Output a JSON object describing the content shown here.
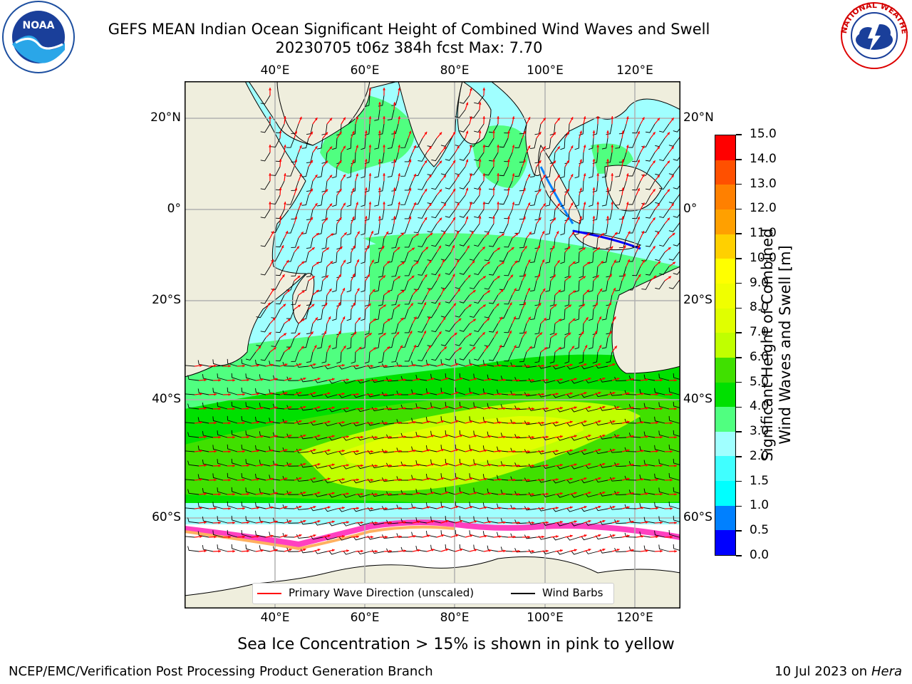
{
  "header": {
    "title_line1": "GEFS MEAN Indian Ocean Significant Height of Combined Wind Waves and Swell",
    "title_line2": "20230705 t06z 384h fcst   Max: 7.70"
  },
  "logos": {
    "left": {
      "icon": "noaa-logo-icon",
      "text": "NOAA"
    },
    "right": {
      "icon": "nws-logo-icon",
      "text": "NATIONAL WEATHER SERVICE"
    }
  },
  "map": {
    "lon_ticks": [
      "40°E",
      "60°E",
      "80°E",
      "100°E",
      "120°E"
    ],
    "lat_ticks": [
      "20°N",
      "0°",
      "20°S",
      "40°S",
      "60°S"
    ],
    "legend": {
      "wave_label": "Primary Wave Direction (unscaled)",
      "barb_label": "Wind Barbs",
      "wave_color": "#ff0000",
      "barb_color": "#000000"
    },
    "land_color": "#efeedd"
  },
  "colorbar": {
    "label_line1": "Significant Height of Combined",
    "label_line2": "Wind Waves and Swell [m]",
    "ticks": [
      "0.0",
      "0.5",
      "1.0",
      "1.5",
      "2.0",
      "3.0",
      "4.0",
      "5.0",
      "6.0",
      "7.0",
      "8.0",
      "9.0",
      "10.0",
      "11.0",
      "12.0",
      "13.0",
      "14.0",
      "15.0"
    ],
    "colors": [
      "#0000ff",
      "#0080ff",
      "#00ffff",
      "#40ffff",
      "#a0ffff",
      "#50ff80",
      "#00e000",
      "#40e000",
      "#c0ff00",
      "#e0ff00",
      "#f0ff00",
      "#ffff00",
      "#ffd000",
      "#ffa000",
      "#ff8000",
      "#ff5000",
      "#ff0000"
    ]
  },
  "note": "Sea Ice Concentration > 15% is shown in pink to yellow",
  "footer": {
    "left": "NCEP/EMC/Verification Post Processing Product Generation Branch",
    "date": "10 Jul 2023 on ",
    "host": "Hera"
  }
}
